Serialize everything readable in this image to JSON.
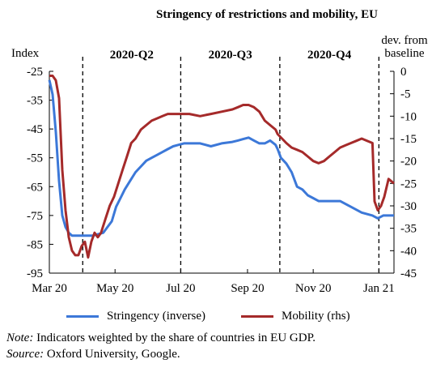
{
  "chart_data": {
    "type": "line",
    "title": "Stringency of restrictions and mobility, EU",
    "left_axis": {
      "label": "Index",
      "ylim": [
        -95,
        -25
      ],
      "ticks": [
        -25,
        -35,
        -45,
        -55,
        -65,
        -75,
        -85,
        -95
      ]
    },
    "right_axis": {
      "label_line1": "dev. from",
      "label_line2": "baseline",
      "ylim": [
        -45,
        0
      ],
      "ticks": [
        0,
        -5,
        -10,
        -15,
        -20,
        -25,
        -30,
        -35,
        -40,
        -45
      ]
    },
    "x_axis": {
      "tick_labels": [
        "Mar 20",
        "May 20",
        "Jul 20",
        "Sep 20",
        "Nov 20",
        "Jan 21"
      ],
      "tick_days": [
        0,
        61,
        122,
        184,
        245,
        306
      ]
    },
    "quarters": [
      {
        "label": "2020-Q2",
        "start_day": 31,
        "end_day": 122
      },
      {
        "label": "2020-Q3",
        "start_day": 122,
        "end_day": 214
      },
      {
        "label": "2020-Q4",
        "start_day": 214,
        "end_day": 306
      }
    ],
    "series": [
      {
        "name": "Stringency (inverse)",
        "axis": "left",
        "color": "#3C78D8",
        "x": [
          0,
          3,
          6,
          9,
          12,
          15,
          18,
          21,
          24,
          30,
          40,
          50,
          58,
          62,
          66,
          70,
          75,
          80,
          85,
          90,
          95,
          100,
          105,
          110,
          115,
          120,
          125,
          130,
          140,
          150,
          160,
          170,
          175,
          180,
          185,
          190,
          195,
          200,
          205,
          210,
          212,
          215,
          220,
          225,
          230,
          235,
          240,
          245,
          250,
          260,
          270,
          280,
          290,
          300,
          305,
          310,
          315,
          320
        ],
        "y": [
          -28,
          -33,
          -46,
          -63,
          -75,
          -79,
          -81,
          -82,
          -82,
          -82,
          -82,
          -81,
          -77,
          -72,
          -69,
          -66,
          -63,
          -60,
          -58,
          -56,
          -55,
          -54,
          -53,
          -52,
          -51,
          -50.5,
          -50,
          -50,
          -50,
          -51,
          -50,
          -49.5,
          -49,
          -48.5,
          -48,
          -49,
          -50,
          -50,
          -49,
          -50.5,
          -52,
          -55,
          -57,
          -60,
          -65,
          -66,
          -68,
          -69,
          -70,
          -70,
          -70,
          -72,
          -74,
          -75,
          -76,
          -75,
          -75,
          -75
        ]
      },
      {
        "name": "Mobility (rhs)",
        "axis": "right",
        "color": "#A52A2A",
        "x": [
          0,
          3,
          6,
          9,
          12,
          15,
          18,
          21,
          24,
          27,
          30,
          33,
          36,
          39,
          42,
          45,
          48,
          52,
          56,
          60,
          64,
          68,
          72,
          76,
          80,
          85,
          90,
          95,
          100,
          105,
          110,
          115,
          120,
          125,
          130,
          140,
          150,
          160,
          170,
          175,
          180,
          185,
          190,
          195,
          200,
          205,
          210,
          212,
          216,
          220,
          225,
          230,
          235,
          240,
          245,
          250,
          255,
          260,
          265,
          270,
          275,
          280,
          285,
          290,
          295,
          300,
          302,
          305,
          308,
          311,
          315,
          320
        ],
        "y": [
          -1,
          -1,
          -2,
          -6,
          -22,
          -31,
          -37,
          -40,
          -41,
          -41,
          -39,
          -38,
          -41.5,
          -38,
          -36,
          -37,
          -36,
          -33,
          -30,
          -28,
          -25,
          -22,
          -19,
          -16,
          -15,
          -13,
          -12,
          -11,
          -10.5,
          -10,
          -9.5,
          -9.5,
          -9.5,
          -9.5,
          -9.5,
          -10,
          -9.5,
          -9,
          -8.5,
          -8,
          -7.5,
          -7.5,
          -8,
          -9,
          -11,
          -12,
          -13,
          -14,
          -15,
          -16,
          -17,
          -17.5,
          -18,
          -19,
          -20,
          -20.5,
          -20,
          -19,
          -18,
          -17,
          -16.5,
          -16,
          -15.5,
          -15,
          -15.5,
          -16,
          -29,
          -31,
          -30,
          -28,
          -24,
          -25
        ]
      }
    ],
    "legend": {
      "position": "bottom",
      "entries": [
        "Stringency (inverse)",
        "Mobility (rhs)"
      ]
    }
  },
  "footnote": {
    "note_label": "Note:",
    "note_text": "Indicators weighted by the share of countries in EU GDP.",
    "source_label": "Source:",
    "source_text": "Oxford University, Google."
  }
}
